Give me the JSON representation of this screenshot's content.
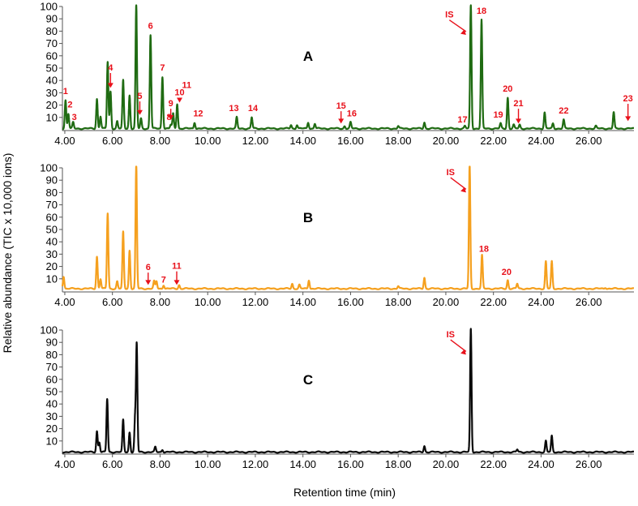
{
  "chart_data": {
    "type": "line",
    "ylabel": "Relative abundance (TIC x 10,000 ions)",
    "xlabel": "Retention time (min)",
    "xlim": [
      3.9,
      27.9
    ],
    "ylim": [
      0,
      100
    ],
    "x_ticks": [
      "4.00",
      "6.00",
      "8.00",
      "10.00",
      "12.00",
      "14.00",
      "16.00",
      "18.00",
      "20.00",
      "22.00",
      "24.00",
      "26.00"
    ],
    "x_tick_values": [
      4,
      6,
      8,
      10,
      12,
      14,
      16,
      18,
      20,
      22,
      24,
      26
    ],
    "y_ticks": [
      "10",
      "20",
      "30",
      "40",
      "50",
      "60",
      "70",
      "80",
      "90",
      "100"
    ],
    "y_tick_values": [
      10,
      20,
      30,
      40,
      50,
      60,
      70,
      80,
      90,
      100
    ],
    "panels": [
      {
        "label": "A",
        "color": "#1f6b12",
        "baseline": 1,
        "peaks": [
          {
            "rt": 4.03,
            "h": 23
          },
          {
            "rt": 4.15,
            "h": 12
          },
          {
            "rt": 4.35,
            "h": 5
          },
          {
            "rt": 5.35,
            "h": 24
          },
          {
            "rt": 5.5,
            "h": 10
          },
          {
            "rt": 5.8,
            "h": 54
          },
          {
            "rt": 5.92,
            "h": 30
          },
          {
            "rt": 6.2,
            "h": 6
          },
          {
            "rt": 6.45,
            "h": 39
          },
          {
            "rt": 6.72,
            "h": 27
          },
          {
            "rt": 7.0,
            "h": 100
          },
          {
            "rt": 7.2,
            "h": 8
          },
          {
            "rt": 7.6,
            "h": 76
          },
          {
            "rt": 8.1,
            "h": 42
          },
          {
            "rt": 8.45,
            "h": 3
          },
          {
            "rt": 8.55,
            "h": 12
          },
          {
            "rt": 8.72,
            "h": 20
          },
          {
            "rt": 9.45,
            "h": 5
          },
          {
            "rt": 11.22,
            "h": 9
          },
          {
            "rt": 11.85,
            "h": 9
          },
          {
            "rt": 13.5,
            "h": 3
          },
          {
            "rt": 13.75,
            "h": 3
          },
          {
            "rt": 14.22,
            "h": 5
          },
          {
            "rt": 14.5,
            "h": 4
          },
          {
            "rt": 15.75,
            "h": 2
          },
          {
            "rt": 16.0,
            "h": 5
          },
          {
            "rt": 18.0,
            "h": 2
          },
          {
            "rt": 19.1,
            "h": 5
          },
          {
            "rt": 20.8,
            "h": 2
          },
          {
            "rt": 21.05,
            "h": 100
          },
          {
            "rt": 21.5,
            "h": 88
          },
          {
            "rt": 22.3,
            "h": 4
          },
          {
            "rt": 22.6,
            "h": 25
          },
          {
            "rt": 22.85,
            "h": 3
          },
          {
            "rt": 23.1,
            "h": 3
          },
          {
            "rt": 24.15,
            "h": 13
          },
          {
            "rt": 24.5,
            "h": 4
          },
          {
            "rt": 24.95,
            "h": 7
          },
          {
            "rt": 26.3,
            "h": 2
          },
          {
            "rt": 27.05,
            "h": 13
          }
        ],
        "annotations": [
          {
            "text": "1",
            "rt": 4.03,
            "y": 29,
            "arrow": false
          },
          {
            "text": "2",
            "rt": 4.22,
            "y": 18,
            "arrow": false
          },
          {
            "text": "3",
            "rt": 4.4,
            "y": 8,
            "arrow": false
          },
          {
            "text": "4",
            "rt": 5.92,
            "y": 48,
            "arrow": true,
            "tip_y": 34
          },
          {
            "text": "5",
            "rt": 7.15,
            "y": 25,
            "arrow": true,
            "tip_y": 12
          },
          {
            "text": "6",
            "rt": 7.6,
            "y": 82,
            "arrow": false
          },
          {
            "text": "7",
            "rt": 8.1,
            "y": 48,
            "arrow": false
          },
          {
            "text": "8",
            "rt": 8.38,
            "y": 8,
            "arrow": false
          },
          {
            "text": "9",
            "rt": 8.45,
            "y": 19,
            "arrow": true,
            "tip_y": 8
          },
          {
            "text": "10",
            "rt": 8.82,
            "y": 28,
            "arrow": true,
            "tip_y": 22
          },
          {
            "text": "11",
            "rt": 9.12,
            "y": 34,
            "arrow": false
          },
          {
            "text": "12",
            "rt": 9.6,
            "y": 11,
            "arrow": false
          },
          {
            "text": "13",
            "rt": 11.1,
            "y": 15,
            "arrow": false
          },
          {
            "text": "14",
            "rt": 11.9,
            "y": 15,
            "arrow": false
          },
          {
            "text": "15",
            "rt": 15.6,
            "y": 17,
            "arrow": true,
            "tip_y": 5
          },
          {
            "text": "16",
            "rt": 16.05,
            "y": 11,
            "arrow": false
          },
          {
            "text": "17",
            "rt": 20.7,
            "y": 6,
            "arrow": false
          },
          {
            "text": "IS",
            "rt": 20.15,
            "y": 91,
            "arrow": true,
            "tip_y": 77
          },
          {
            "text": "18",
            "rt": 21.5,
            "y": 94,
            "arrow": false
          },
          {
            "text": "19",
            "rt": 22.2,
            "y": 10,
            "arrow": false
          },
          {
            "text": "20",
            "rt": 22.6,
            "y": 31,
            "arrow": false
          },
          {
            "text": "21",
            "rt": 23.05,
            "y": 19,
            "arrow": true,
            "tip_y": 5
          },
          {
            "text": "22",
            "rt": 24.95,
            "y": 13,
            "arrow": false
          },
          {
            "text": "23",
            "rt": 27.65,
            "y": 23,
            "arrow": true,
            "tip_y": 7
          }
        ]
      },
      {
        "label": "B",
        "color": "#f5a01e",
        "baseline": 2,
        "peaks": [
          {
            "rt": 3.95,
            "h": 10
          },
          {
            "rt": 5.35,
            "h": 26
          },
          {
            "rt": 5.5,
            "h": 8
          },
          {
            "rt": 5.8,
            "h": 61
          },
          {
            "rt": 6.2,
            "h": 6
          },
          {
            "rt": 6.45,
            "h": 46
          },
          {
            "rt": 6.72,
            "h": 31
          },
          {
            "rt": 7.0,
            "h": 100
          },
          {
            "rt": 7.75,
            "h": 6
          },
          {
            "rt": 7.85,
            "h": 6
          },
          {
            "rt": 8.15,
            "h": 3
          },
          {
            "rt": 8.8,
            "h": 3
          },
          {
            "rt": 13.55,
            "h": 4
          },
          {
            "rt": 13.85,
            "h": 3
          },
          {
            "rt": 14.25,
            "h": 7
          },
          {
            "rt": 18.0,
            "h": 2
          },
          {
            "rt": 19.1,
            "h": 9
          },
          {
            "rt": 21.0,
            "h": 100
          },
          {
            "rt": 21.52,
            "h": 27
          },
          {
            "rt": 22.6,
            "h": 7
          },
          {
            "rt": 23.0,
            "h": 4
          },
          {
            "rt": 24.2,
            "h": 22
          },
          {
            "rt": 24.45,
            "h": 22
          },
          {
            "rt": 26.7,
            "h": 1
          }
        ],
        "annotations": [
          {
            "text": "6",
            "rt": 7.5,
            "y": 17,
            "arrow": true,
            "tip_y": 5
          },
          {
            "text": "7",
            "rt": 8.15,
            "y": 7,
            "arrow": false
          },
          {
            "text": "11",
            "rt": 8.7,
            "y": 18,
            "arrow": true,
            "tip_y": 5
          },
          {
            "text": "IS",
            "rt": 20.2,
            "y": 94,
            "arrow": true,
            "tip_y": 80
          },
          {
            "text": "18",
            "rt": 21.6,
            "y": 32,
            "arrow": false
          },
          {
            "text": "20",
            "rt": 22.55,
            "y": 13,
            "arrow": false
          }
        ]
      },
      {
        "label": "C",
        "color": "#0a0a0a",
        "baseline": 1,
        "peaks": [
          {
            "rt": 5.35,
            "h": 17
          },
          {
            "rt": 5.45,
            "h": 8
          },
          {
            "rt": 5.78,
            "h": 43
          },
          {
            "rt": 6.45,
            "h": 26
          },
          {
            "rt": 6.72,
            "h": 16
          },
          {
            "rt": 6.95,
            "h": 26
          },
          {
            "rt": 7.02,
            "h": 87
          },
          {
            "rt": 7.8,
            "h": 4
          },
          {
            "rt": 8.1,
            "h": 2
          },
          {
            "rt": 19.1,
            "h": 5
          },
          {
            "rt": 21.05,
            "h": 100
          },
          {
            "rt": 23.0,
            "h": 2
          },
          {
            "rt": 24.2,
            "h": 9
          },
          {
            "rt": 24.45,
            "h": 13
          }
        ],
        "annotations": [
          {
            "text": "IS",
            "rt": 20.2,
            "y": 94,
            "arrow": true,
            "tip_y": 80
          }
        ]
      }
    ]
  }
}
